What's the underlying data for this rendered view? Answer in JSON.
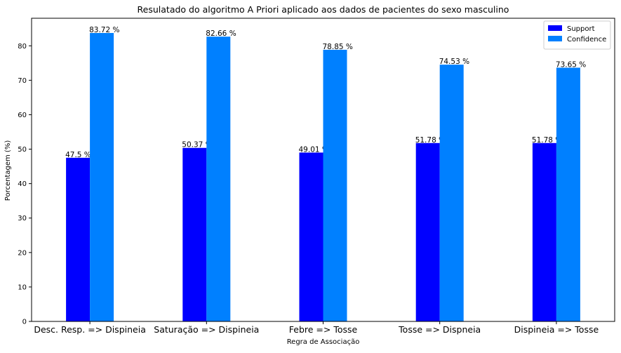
{
  "chart_data": {
    "type": "bar",
    "title": "Resulatado do algoritmo A Priori aplicado aos dados de pacientes do sexo masculino",
    "xlabel": "Regra de Associação",
    "ylabel": "Porcentagem (%)",
    "categories": [
      "Desc. Resp. => Dispineia",
      "Saturação => Dispineia",
      "Febre => Tosse",
      "Tosse => Dispneia",
      "Dispineia => Tosse"
    ],
    "series": [
      {
        "name": "Support",
        "color": "#0000ff",
        "values": [
          47.5,
          50.37,
          49.01,
          51.78,
          51.78
        ],
        "labels": [
          "47.5 %",
          "50.37 %",
          "49.01 %",
          "51.78 %",
          "51.78 %"
        ]
      },
      {
        "name": "Confidence",
        "color": "#0080ff",
        "values": [
          83.72,
          82.66,
          78.85,
          74.53,
          73.65
        ],
        "labels": [
          "83.72 %",
          "82.66 %",
          "78.85 %",
          "74.53 %",
          "73.65 %"
        ]
      }
    ],
    "ylim": [
      0,
      88
    ],
    "yticks": [
      "0",
      "10",
      "20",
      "30",
      "40",
      "50",
      "60",
      "70",
      "80"
    ],
    "grid": false,
    "legend_position": "top-right"
  }
}
